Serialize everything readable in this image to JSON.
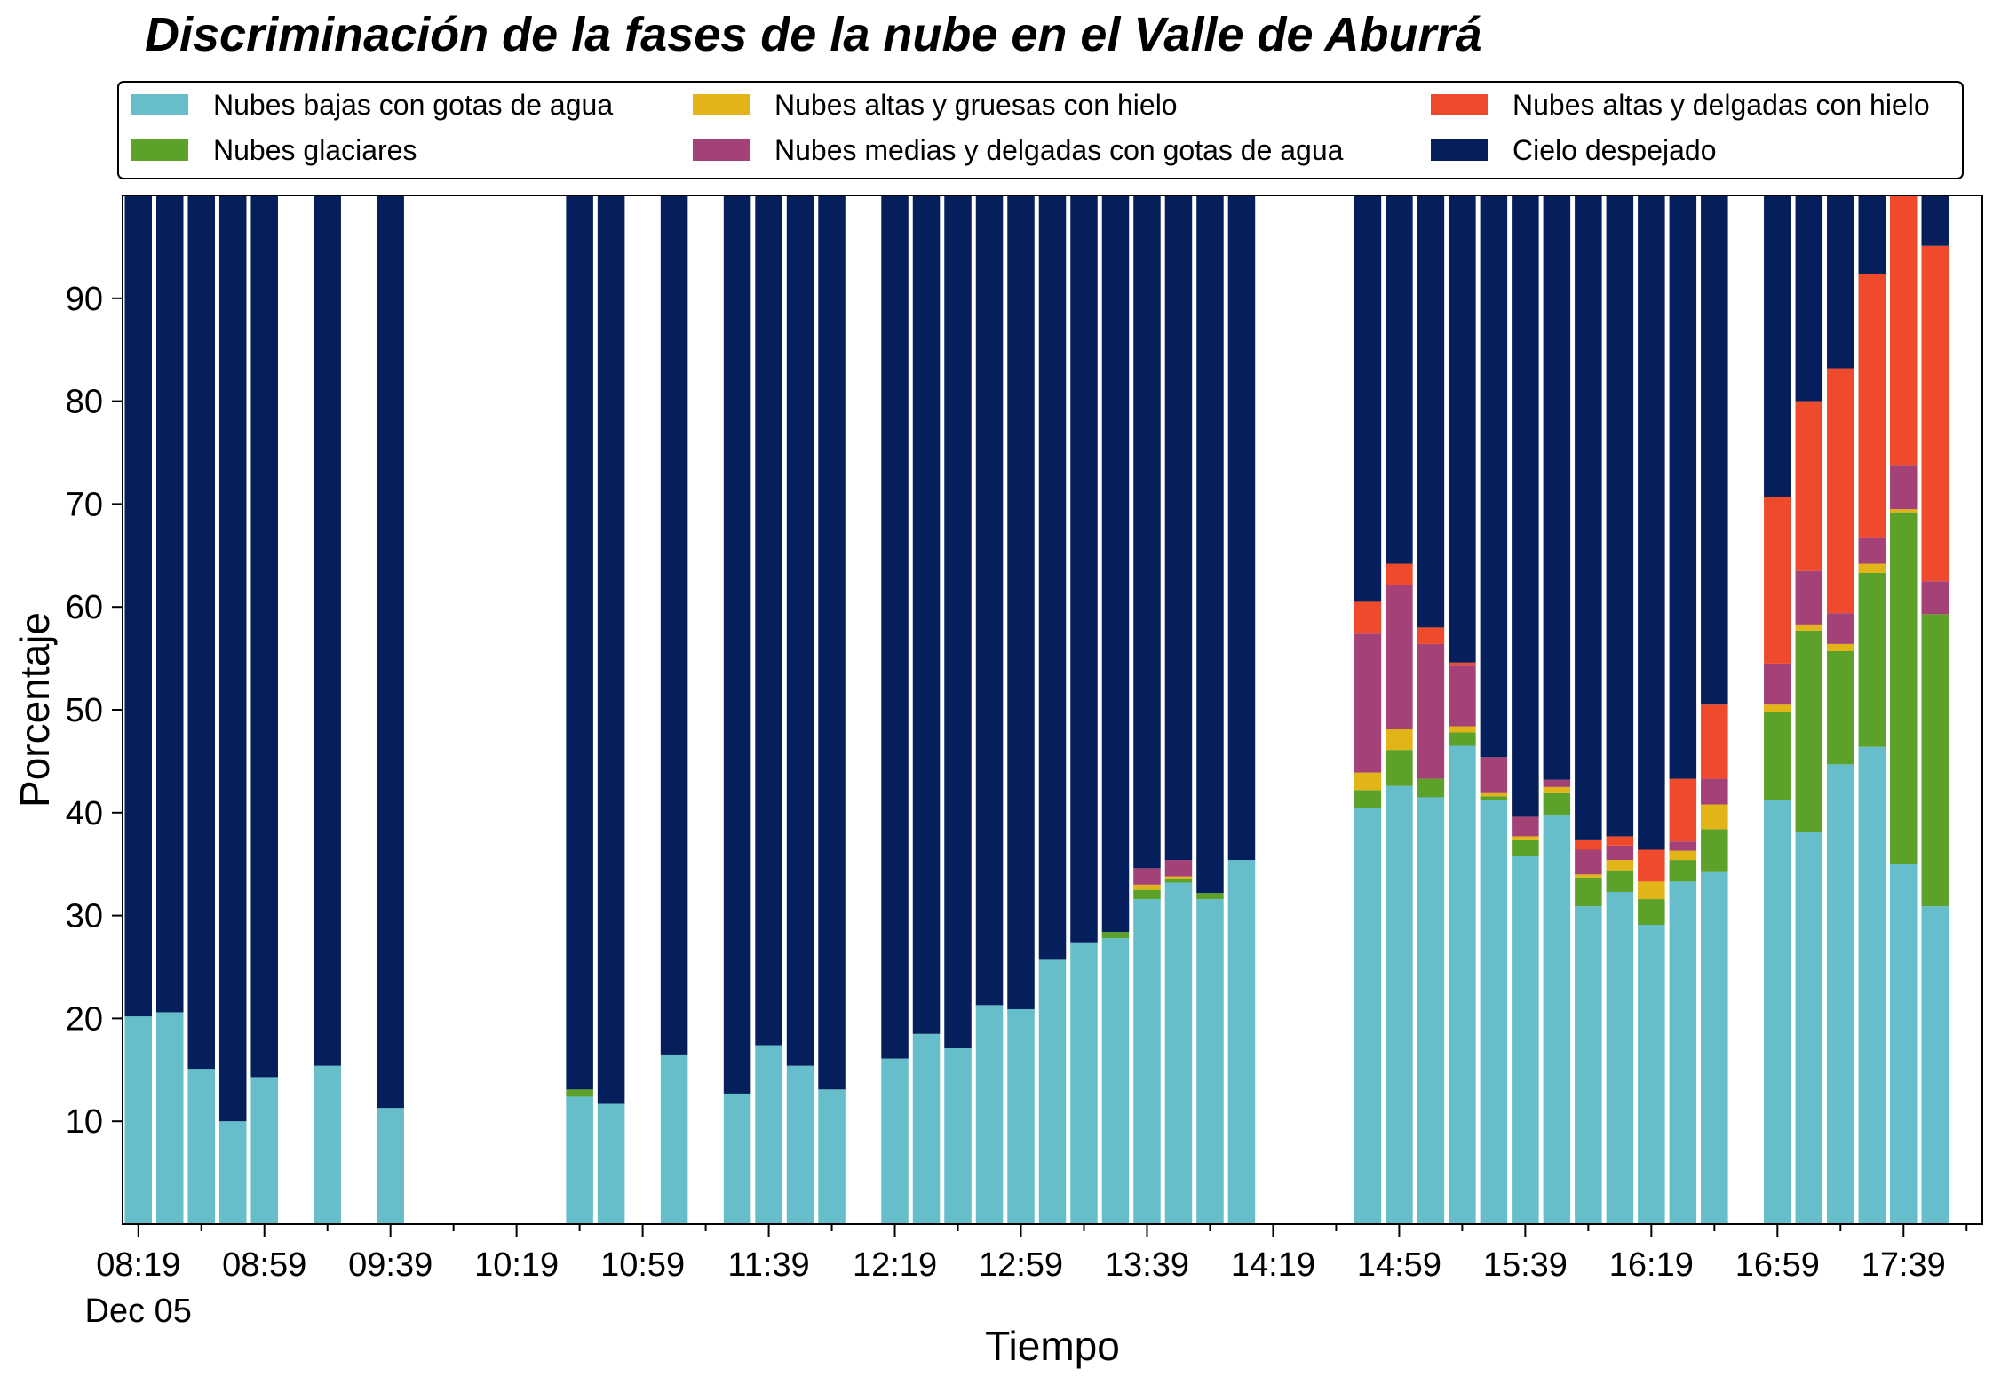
{
  "chart_data": {
    "type": "bar",
    "stacked": true,
    "title": "Discriminación de la fases de la nube en el Valle de Aburrá",
    "xlabel": "Tiempo",
    "ylabel": "Porcentaje",
    "ylim": [
      0,
      100
    ],
    "yticks": [
      10,
      20,
      30,
      40,
      50,
      60,
      70,
      80,
      90
    ],
    "x_start": "08:19",
    "x_step_minutes": 10,
    "x_count": 59,
    "xticks": [
      {
        "label": "08:19",
        "index": 0,
        "sublabel": "Dec 05"
      },
      {
        "label": "08:59",
        "index": 4
      },
      {
        "label": "09:39",
        "index": 8
      },
      {
        "label": "10:19",
        "index": 12
      },
      {
        "label": "10:59",
        "index": 16
      },
      {
        "label": "11:39",
        "index": 20
      },
      {
        "label": "12:19",
        "index": 24
      },
      {
        "label": "12:59",
        "index": 28
      },
      {
        "label": "13:39",
        "index": 32
      },
      {
        "label": "14:19",
        "index": 36
      },
      {
        "label": "14:59",
        "index": 40
      },
      {
        "label": "15:39",
        "index": 44
      },
      {
        "label": "16:19",
        "index": 48
      },
      {
        "label": "16:59",
        "index": 52
      },
      {
        "label": "17:39",
        "index": 56
      }
    ],
    "grid": false,
    "legend_position": "top",
    "series": [
      {
        "name": "Nubes bajas con gotas de agua",
        "color": "#65BEC9"
      },
      {
        "name": "Nubes glaciares",
        "color": "#5BA12A"
      },
      {
        "name": "Nubes altas y gruesas con hielo",
        "color": "#E2B417"
      },
      {
        "name": "Nubes medias y delgadas con gotas de agua",
        "color": "#A44278"
      },
      {
        "name": "Nubes altas y delgadas con hielo",
        "color": "#EE4A2B"
      },
      {
        "name": "Cielo despejado",
        "color": "#051F5C"
      }
    ],
    "bars": [
      {
        "index": 0,
        "values": [
          20.2,
          0,
          0,
          0,
          0,
          79.8
        ]
      },
      {
        "index": 1,
        "values": [
          20.6,
          0,
          0,
          0,
          0,
          79.4
        ]
      },
      {
        "index": 2,
        "values": [
          15.1,
          0,
          0,
          0,
          0,
          84.9
        ]
      },
      {
        "index": 3,
        "values": [
          10.0,
          0,
          0,
          0,
          0,
          90.0
        ]
      },
      {
        "index": 4,
        "values": [
          14.3,
          0,
          0,
          0,
          0,
          85.7
        ]
      },
      {
        "index": 6,
        "values": [
          15.4,
          0,
          0,
          0,
          0,
          84.6
        ]
      },
      {
        "index": 8,
        "values": [
          11.3,
          0,
          0,
          0,
          0,
          88.7
        ]
      },
      {
        "index": 14,
        "values": [
          12.4,
          0.7,
          0,
          0,
          0,
          86.9
        ]
      },
      {
        "index": 15,
        "values": [
          11.7,
          0,
          0,
          0,
          0,
          88.3
        ]
      },
      {
        "index": 17,
        "values": [
          16.5,
          0,
          0,
          0,
          0,
          83.5
        ]
      },
      {
        "index": 19,
        "values": [
          12.7,
          0,
          0,
          0,
          0,
          87.3
        ]
      },
      {
        "index": 20,
        "values": [
          17.4,
          0,
          0,
          0,
          0,
          82.6
        ]
      },
      {
        "index": 21,
        "values": [
          15.4,
          0,
          0,
          0,
          0,
          84.6
        ]
      },
      {
        "index": 22,
        "values": [
          13.1,
          0,
          0,
          0,
          0,
          86.9
        ]
      },
      {
        "index": 24,
        "values": [
          16.1,
          0,
          0,
          0,
          0,
          83.9
        ]
      },
      {
        "index": 25,
        "values": [
          18.5,
          0,
          0,
          0,
          0,
          81.5
        ]
      },
      {
        "index": 26,
        "values": [
          17.1,
          0,
          0,
          0,
          0,
          82.9
        ]
      },
      {
        "index": 27,
        "values": [
          21.3,
          0,
          0,
          0,
          0,
          78.7
        ]
      },
      {
        "index": 28,
        "values": [
          20.9,
          0,
          0,
          0,
          0,
          79.1
        ]
      },
      {
        "index": 29,
        "values": [
          25.7,
          0,
          0,
          0,
          0,
          74.3
        ]
      },
      {
        "index": 30,
        "values": [
          27.4,
          0,
          0,
          0,
          0,
          72.6
        ]
      },
      {
        "index": 31,
        "values": [
          27.8,
          0.6,
          0,
          0,
          0,
          71.6
        ]
      },
      {
        "index": 32,
        "values": [
          31.6,
          0.9,
          0.5,
          1.6,
          0,
          65.4
        ]
      },
      {
        "index": 33,
        "values": [
          33.2,
          0.4,
          0.2,
          1.6,
          0,
          64.6
        ]
      },
      {
        "index": 34,
        "values": [
          31.6,
          0.6,
          0,
          0,
          0,
          67.8
        ]
      },
      {
        "index": 35,
        "values": [
          35.4,
          0,
          0,
          0,
          0,
          64.6
        ]
      },
      {
        "index": 39,
        "values": [
          40.5,
          1.7,
          1.7,
          13.5,
          3.1,
          39.5
        ]
      },
      {
        "index": 40,
        "values": [
          42.6,
          3.5,
          2.0,
          14.0,
          2.1,
          35.8
        ]
      },
      {
        "index": 41,
        "values": [
          41.5,
          1.8,
          0,
          13.1,
          1.6,
          42.0
        ]
      },
      {
        "index": 42,
        "values": [
          46.5,
          1.3,
          0.6,
          5.9,
          0.3,
          45.4
        ]
      },
      {
        "index": 43,
        "values": [
          41.2,
          0.4,
          0.3,
          3.5,
          0,
          54.6
        ]
      },
      {
        "index": 44,
        "values": [
          35.8,
          1.6,
          0.3,
          1.9,
          0,
          60.4
        ]
      },
      {
        "index": 45,
        "values": [
          39.8,
          2.1,
          0.6,
          0.7,
          0,
          56.8
        ]
      },
      {
        "index": 46,
        "values": [
          30.9,
          2.8,
          0.3,
          2.4,
          1.0,
          62.6
        ]
      },
      {
        "index": 47,
        "values": [
          32.3,
          2.1,
          1.0,
          1.4,
          0.9,
          62.3
        ]
      },
      {
        "index": 48,
        "values": [
          29.1,
          2.5,
          1.7,
          0,
          3.1,
          63.6
        ]
      },
      {
        "index": 49,
        "values": [
          33.3,
          2.1,
          0.9,
          0.9,
          6.1,
          56.7
        ]
      },
      {
        "index": 50,
        "values": [
          34.3,
          4.1,
          2.4,
          2.5,
          7.2,
          49.5
        ]
      },
      {
        "index": 52,
        "values": [
          41.2,
          8.6,
          0.7,
          4.0,
          16.2,
          29.3
        ]
      },
      {
        "index": 53,
        "values": [
          38.1,
          19.6,
          0.6,
          5.2,
          16.5,
          20.0
        ]
      },
      {
        "index": 54,
        "values": [
          44.7,
          11.0,
          0.7,
          3.0,
          23.8,
          16.8
        ]
      },
      {
        "index": 55,
        "values": [
          46.4,
          16.9,
          0.9,
          2.5,
          25.7,
          7.6
        ]
      },
      {
        "index": 56,
        "values": [
          35.0,
          34.2,
          0.3,
          4.3,
          26.2,
          0
        ]
      },
      {
        "index": 57,
        "values": [
          30.9,
          28.4,
          0,
          3.2,
          32.6,
          4.9
        ]
      }
    ]
  }
}
